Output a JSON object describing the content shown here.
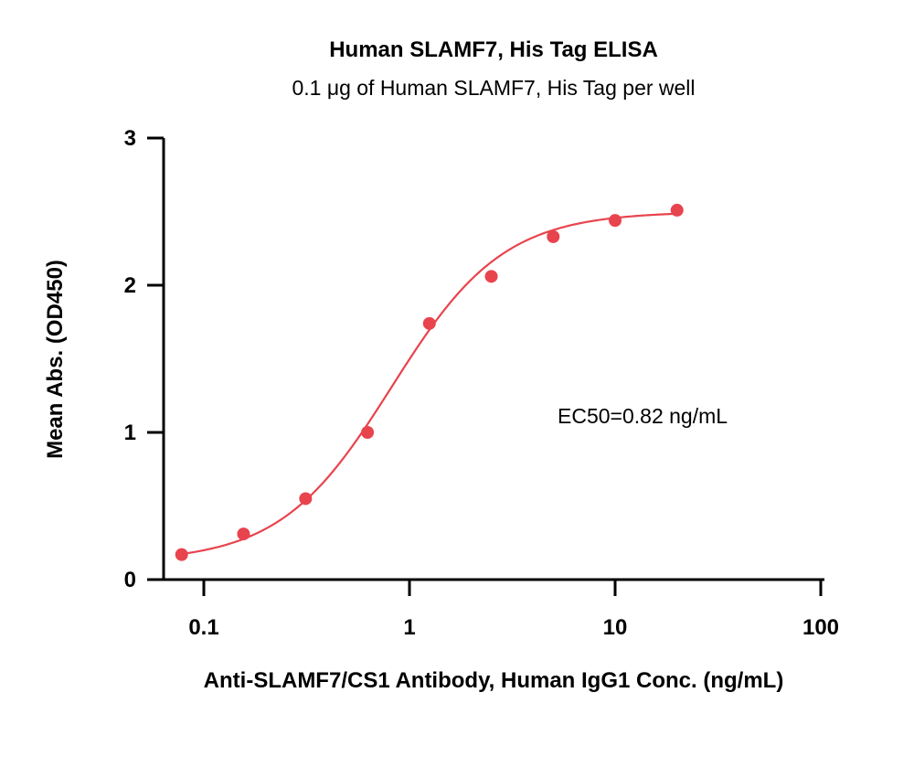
{
  "chart_data": {
    "type": "scatter",
    "title": "Human SLAMF7, His Tag ELISA",
    "subtitle": "0.1 μg of Human SLAMF7, His Tag per well",
    "xlabel": "Anti-SLAMF7/CS1 Antibody, Human IgG1 Conc. (ng/mL)",
    "ylabel": "Mean Abs. (OD450)",
    "xscale": "log",
    "xlim": [
      0.07,
      100
    ],
    "ylim": [
      0,
      3
    ],
    "x_ticks": [
      0.1,
      1,
      10,
      100
    ],
    "x_tick_labels": [
      "0.1",
      "1",
      "10",
      "100"
    ],
    "y_ticks": [
      0,
      1,
      2,
      3
    ],
    "y_tick_labels": [
      "0",
      "1",
      "2",
      "3"
    ],
    "grid": false,
    "series": [
      {
        "color": "#e8444e",
        "x": [
          0.078,
          0.156,
          0.3125,
          0.625,
          1.25,
          2.5,
          5,
          10,
          20
        ],
        "y": [
          0.17,
          0.31,
          0.55,
          1.0,
          1.74,
          2.06,
          2.33,
          2.44,
          2.51
        ]
      }
    ],
    "fit": {
      "model": "4PL",
      "bottom": 0.12,
      "top": 2.5,
      "ec50": 0.82,
      "hill": 1.6,
      "color": "#e8444e"
    },
    "annotations": [
      {
        "text": "EC50=0.82 ng/mL"
      }
    ]
  }
}
